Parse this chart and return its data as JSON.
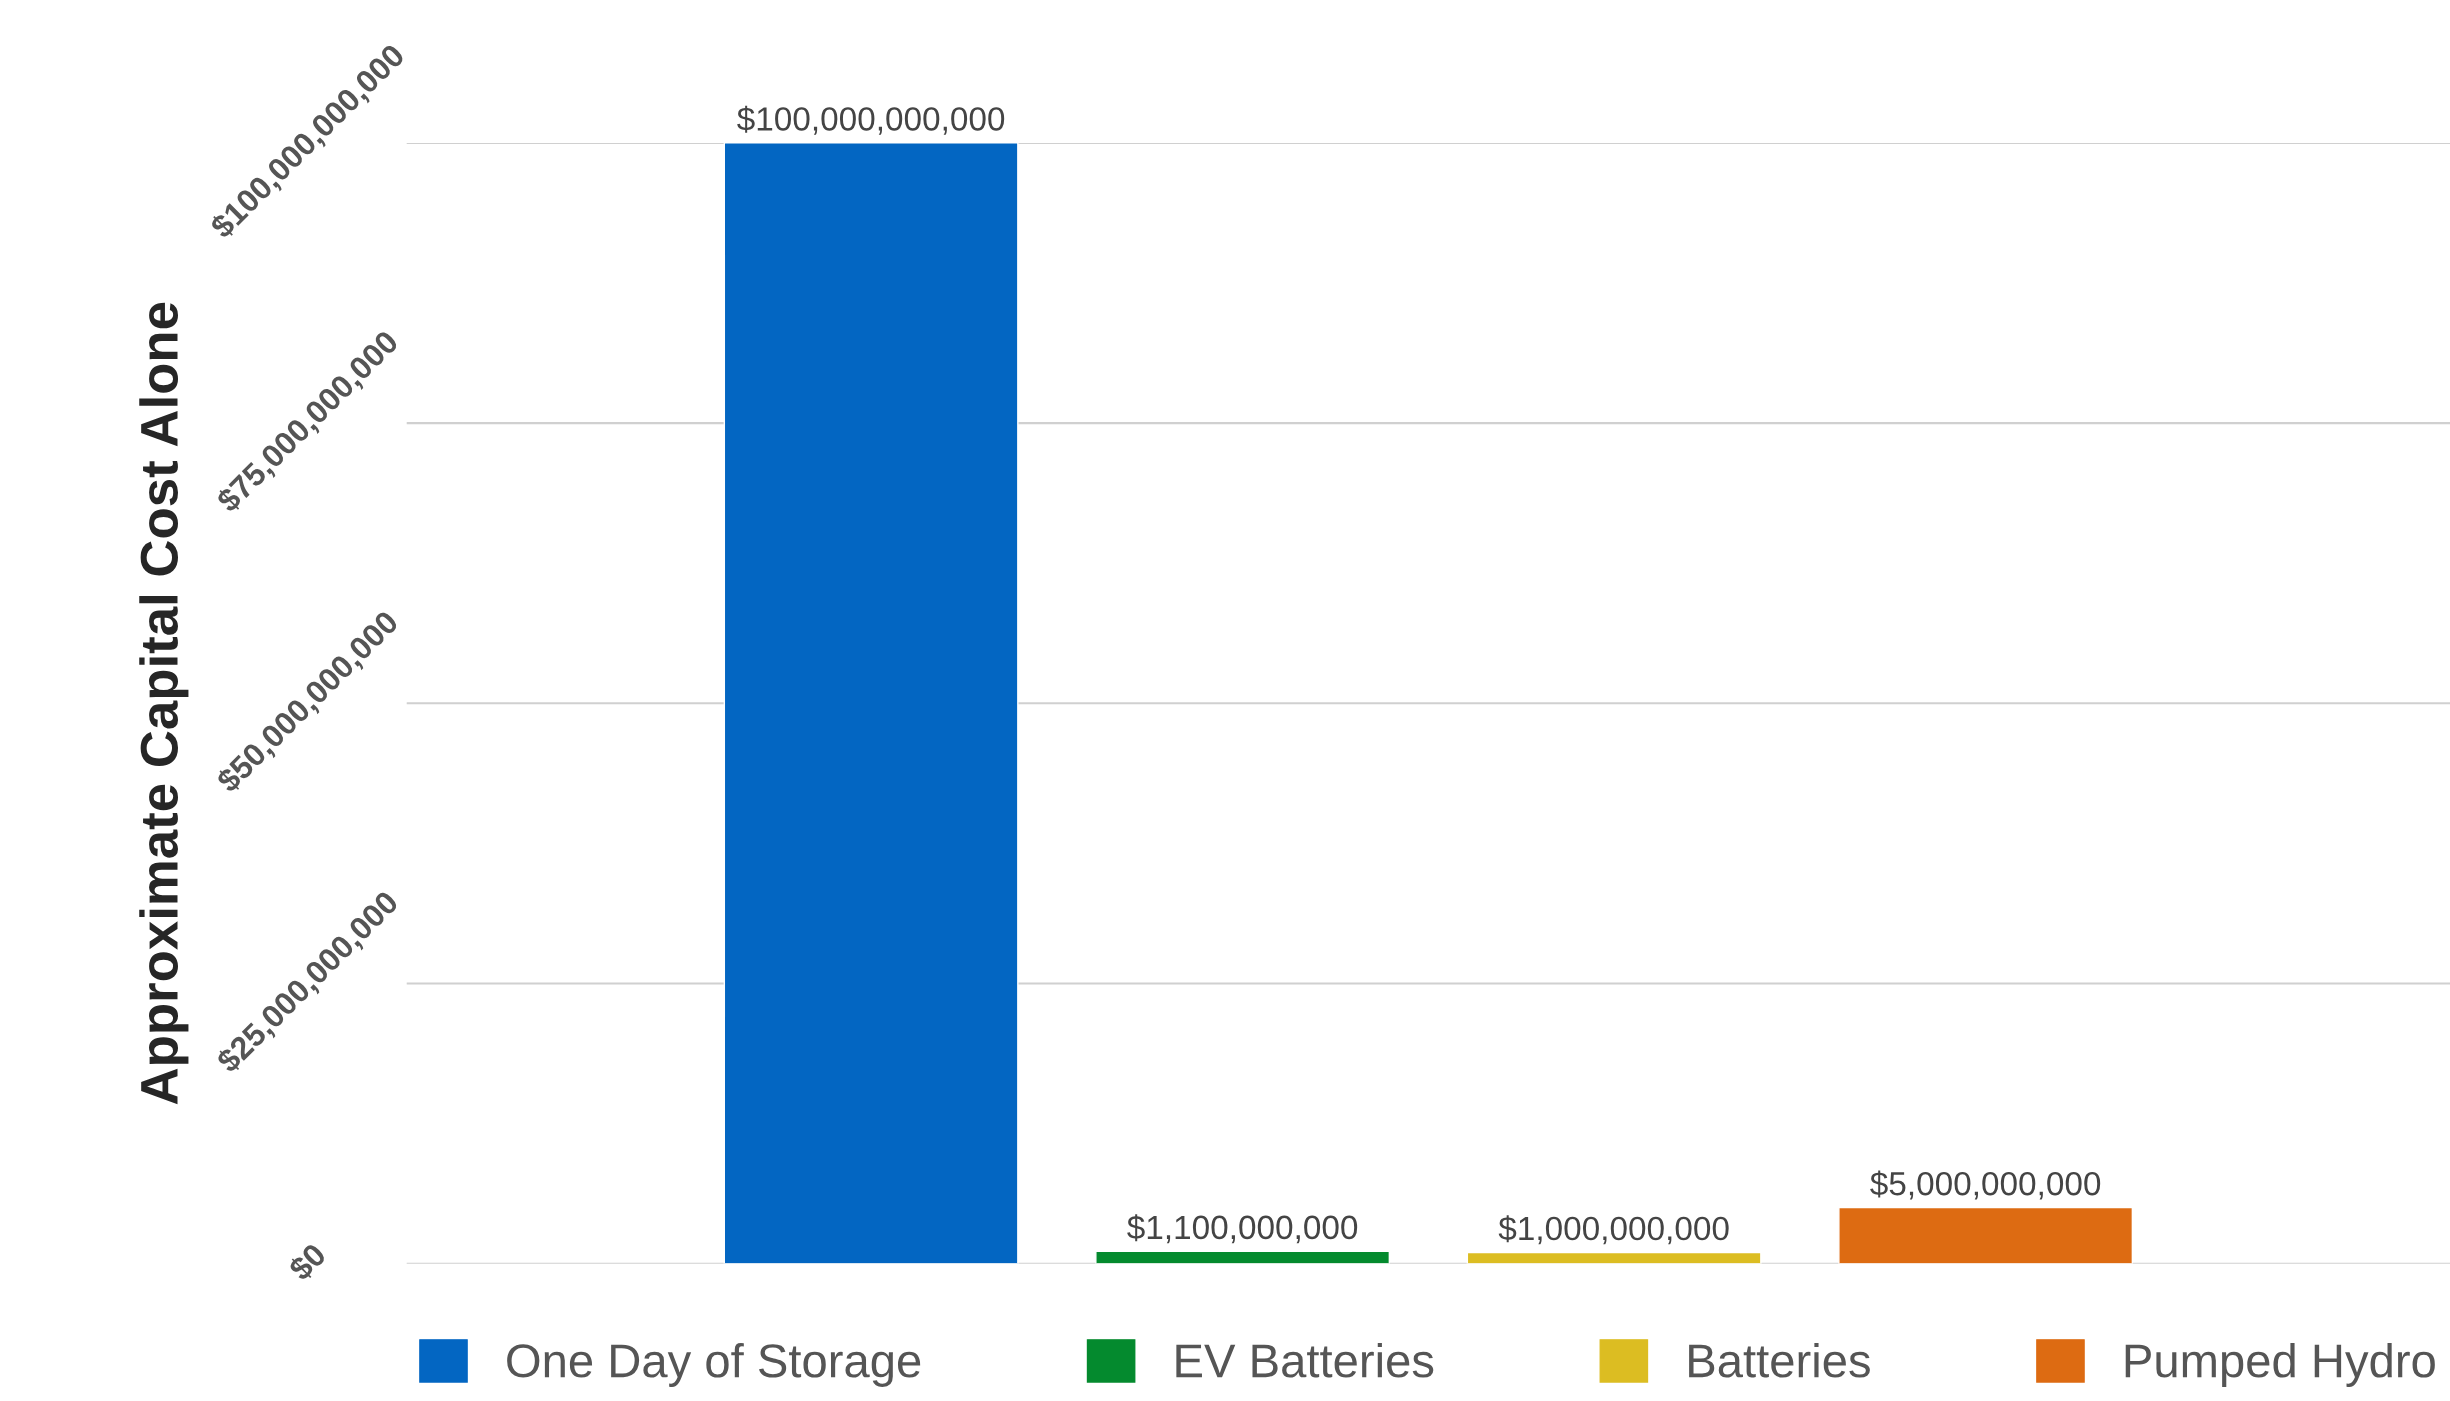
{
  "chart_data": {
    "type": "bar",
    "ylabel": "Approximate Capital Cost Alone",
    "categories": [
      null,
      null,
      null,
      null
    ],
    "series": [
      {
        "name": "One Day of Storage",
        "color": "#0366c2",
        "values": [
          100000000000,
          null,
          null,
          null
        ],
        "value_labels": [
          "$100,000,000,000",
          null,
          null,
          null
        ]
      },
      {
        "name": "EV Batteries",
        "color": "#048a2e",
        "values": [
          null,
          1100000000,
          null,
          null
        ],
        "value_labels": [
          null,
          "$1,100,000,000",
          null,
          null
        ]
      },
      {
        "name": "Batteries",
        "color": "#dcbd22",
        "values": [
          null,
          null,
          1000000000,
          null
        ],
        "value_labels": [
          null,
          null,
          "$1,000,000,000",
          null
        ]
      },
      {
        "name": "Pumped Hydro",
        "color": "#dd6b12",
        "values": [
          null,
          null,
          null,
          5000000000
        ],
        "value_labels": [
          null,
          null,
          null,
          "$5,000,000,000"
        ]
      }
    ],
    "ylim": [
      0,
      100000000000
    ],
    "yticks": [
      {
        "value": 0,
        "label": "$0"
      },
      {
        "value": 25000000000,
        "label": "$25,000,000,000"
      },
      {
        "value": 50000000000,
        "label": "$50,000,000,000"
      },
      {
        "value": 75000000000,
        "label": "$75,000,000,000"
      },
      {
        "value": 100000000000,
        "label": "$100,000,000,000"
      }
    ],
    "grid": "y",
    "legend": "bottom"
  }
}
